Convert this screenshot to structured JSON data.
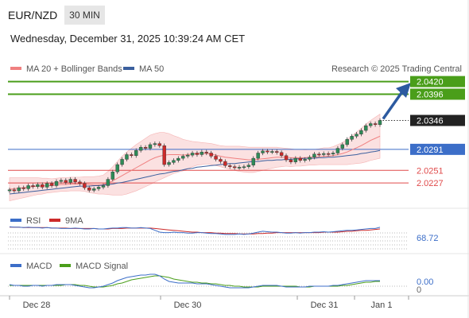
{
  "header": {
    "pair": "EUR/NZD",
    "timeframe": "30 MIN",
    "datetime": "Wednesday, December 31, 2025 10:39:24 AM CET"
  },
  "legend": {
    "ma20": "MA 20 + Bollinger Bands",
    "ma50": "MA 50",
    "credit": "Research © 2025 Trading Central"
  },
  "colors": {
    "candle_up": "#2e8b57",
    "candle_down": "#cc2a2a",
    "ma20": "#f08080",
    "ma50": "#3b5f9e",
    "band_fill": "#fbe1e1",
    "resistance": "#4a9e1a",
    "pivot": "#3c6ec8",
    "support": "#e04a4a",
    "arrow": "#2c5aa0"
  },
  "chart_data": [
    {
      "type": "line",
      "panel": "price",
      "x_ticks": [
        "Dec 28",
        "Dec 30",
        "Dec 31",
        "Jan 1"
      ],
      "levels": [
        {
          "value": 2.042,
          "label": "2.0420",
          "kind": "resistance"
        },
        {
          "value": 2.0396,
          "label": "2.0396",
          "kind": "resistance"
        },
        {
          "value": 2.0346,
          "label": "2.0346",
          "kind": "last"
        },
        {
          "value": 2.0291,
          "label": "2.0291",
          "kind": "pivot"
        },
        {
          "value": 2.0251,
          "label": "2.0251",
          "kind": "support"
        },
        {
          "value": 2.0227,
          "label": "2.0227",
          "kind": "support"
        }
      ],
      "close": [
        2.0214,
        2.0212,
        2.0218,
        2.0216,
        2.0222,
        2.022,
        2.0224,
        2.0219,
        2.0226,
        2.0222,
        2.023,
        2.0232,
        2.0228,
        2.0234,
        2.0229,
        2.0226,
        2.0218,
        2.0213,
        2.0216,
        2.0219,
        2.0222,
        2.0234,
        2.0248,
        2.0262,
        2.0272,
        2.0281,
        2.0279,
        2.0289,
        2.0295,
        2.0293,
        2.03,
        2.0302,
        2.0298,
        2.0262,
        2.0266,
        2.027,
        2.0274,
        2.0278,
        2.028,
        2.0284,
        2.0281,
        2.0286,
        2.0284,
        2.0278,
        2.0272,
        2.0268,
        2.026,
        2.0258,
        2.0256,
        2.0257,
        2.0258,
        2.0261,
        2.0274,
        2.0284,
        2.0288,
        2.0286,
        2.0287,
        2.0285,
        2.0279,
        2.0271,
        2.0267,
        2.0274,
        2.027,
        2.0272,
        2.0276,
        2.0282,
        2.0281,
        2.0283,
        2.0282,
        2.0284,
        2.0293,
        2.03,
        2.031,
        2.0316,
        2.032,
        2.0327,
        2.0336,
        2.034,
        2.0338,
        2.0346
      ],
      "ma20": [
        2.0215,
        2.0216,
        2.0217,
        2.0218,
        2.0219,
        2.022,
        2.0221,
        2.0221,
        2.0222,
        2.0222,
        2.0223,
        2.0224,
        2.0224,
        2.0225,
        2.0225,
        2.0225,
        2.0225,
        2.0224,
        2.0223,
        2.0223,
        2.0224,
        2.0227,
        2.0231,
        2.0236,
        2.0241,
        2.0246,
        2.0251,
        2.0256,
        2.0261,
        2.0266,
        2.0271,
        2.0275,
        2.0278,
        2.028,
        2.0281,
        2.0281,
        2.0281,
        2.028,
        2.0281,
        2.0282,
        2.0283,
        2.0283,
        2.0283,
        2.0282,
        2.028,
        2.0278,
        2.0276,
        2.0275,
        2.0274,
        2.0273,
        2.0272,
        2.0271,
        2.0271,
        2.0272,
        2.0273,
        2.0274,
        2.0275,
        2.0276,
        2.0276,
        2.0276,
        2.0275,
        2.0275,
        2.0275,
        2.0275,
        2.0276,
        2.0276,
        2.0277,
        2.0278,
        2.0278,
        2.0279,
        2.0281,
        2.0283,
        2.0286,
        2.029,
        2.0294,
        2.0298,
        2.0303,
        2.0308,
        2.0312,
        2.0316
      ],
      "ma50": [
        2.0206,
        2.0207,
        2.0208,
        2.0209,
        2.021,
        2.0211,
        2.0212,
        2.0213,
        2.0214,
        2.0215,
        2.0216,
        2.0217,
        2.0218,
        2.0219,
        2.022,
        2.0221,
        2.0221,
        2.0221,
        2.0222,
        2.0222,
        2.0223,
        2.0224,
        2.0225,
        2.0227,
        2.0228,
        2.023,
        2.0232,
        2.0234,
        2.0236,
        2.0238,
        2.024,
        2.0242,
        2.0244,
        2.0245,
        2.0247,
        2.0249,
        2.025,
        2.0252,
        2.0254,
        2.0255,
        2.0257,
        2.0258,
        2.0259,
        2.026,
        2.0261,
        2.0262,
        2.0263,
        2.0264,
        2.0264,
        2.0265,
        2.0266,
        2.0267,
        2.0268,
        2.0268,
        2.0269,
        2.027,
        2.027,
        2.0271,
        2.0271,
        2.0272,
        2.0272,
        2.0273,
        2.0273,
        2.0274,
        2.0274,
        2.0274,
        2.0275,
        2.0275,
        2.0276,
        2.0276,
        2.0277,
        2.0278,
        2.0279,
        2.028,
        2.0281,
        2.0283,
        2.0284,
        2.0286,
        2.0287,
        2.0289
      ],
      "bb_width": [
        0.0022,
        0.0021,
        0.002,
        0.0019,
        0.0018,
        0.0017,
        0.0016,
        0.0015,
        0.0014,
        0.0013,
        0.0013,
        0.0013,
        0.0013,
        0.0013,
        0.0013,
        0.0013,
        0.0014,
        0.0015,
        0.0016,
        0.0017,
        0.0018,
        0.0022,
        0.0027,
        0.0032,
        0.0037,
        0.004,
        0.0042,
        0.0044,
        0.0045,
        0.0046,
        0.0047,
        0.0046,
        0.0045,
        0.0043,
        0.004,
        0.0036,
        0.0033,
        0.003,
        0.0027,
        0.0024,
        0.0022,
        0.0021,
        0.002,
        0.002,
        0.002,
        0.002,
        0.0021,
        0.0022,
        0.0023,
        0.0024,
        0.0024,
        0.0024,
        0.0024,
        0.0023,
        0.0022,
        0.0021,
        0.002,
        0.0019,
        0.0018,
        0.0017,
        0.0017,
        0.0016,
        0.0016,
        0.0015,
        0.0015,
        0.0015,
        0.0015,
        0.0016,
        0.0016,
        0.0017,
        0.0019,
        0.0021,
        0.0024,
        0.0027,
        0.003,
        0.0033,
        0.0036,
        0.0038,
        0.004,
        0.0042
      ]
    },
    {
      "type": "line",
      "panel": "rsi",
      "legend": [
        "RSI",
        "9MA"
      ],
      "last_label": "68.72",
      "ylim": [
        0,
        100
      ],
      "rsi": [
        70,
        69,
        69,
        68,
        69,
        68,
        68,
        67,
        68,
        67,
        67,
        66,
        66,
        66,
        67,
        66,
        65,
        65,
        66,
        65,
        65,
        66,
        67,
        67,
        68,
        68,
        67,
        67,
        68,
        67,
        66,
        62,
        58,
        57,
        57,
        58,
        57,
        57,
        56,
        56,
        57,
        57,
        56,
        55,
        55,
        54,
        53,
        53,
        53,
        54,
        53,
        54,
        56,
        58,
        60,
        59,
        58,
        58,
        57,
        56,
        56,
        57,
        56,
        57,
        57,
        58,
        58,
        59,
        58,
        59,
        60,
        61,
        62,
        62,
        63,
        64,
        65,
        66,
        66,
        68.72
      ],
      "ma9": [
        69,
        69,
        69,
        68,
        68,
        68,
        68,
        68,
        68,
        67,
        67,
        67,
        67,
        66,
        66,
        66,
        66,
        66,
        66,
        65,
        65,
        65,
        66,
        66,
        66,
        67,
        67,
        67,
        67,
        67,
        67,
        66,
        65,
        64,
        63,
        62,
        61,
        60,
        59,
        58,
        58,
        57,
        57,
        57,
        56,
        56,
        55,
        55,
        55,
        54,
        54,
        54,
        54,
        55,
        55,
        56,
        56,
        57,
        57,
        57,
        57,
        57,
        57,
        57,
        57,
        57,
        57,
        58,
        58,
        58,
        58,
        59,
        60,
        60,
        61,
        62,
        62,
        63,
        64,
        65
      ]
    },
    {
      "type": "line",
      "panel": "macd",
      "legend": [
        "MACD",
        "MACD Signal"
      ],
      "last_label": "0.00",
      "axis_label": "0",
      "ylim": [
        -0.0012,
        0.0018
      ],
      "macd": [
        0.0002,
        0.0001,
        0.0001,
        0.0,
        0.0,
        0.0001,
        0.0001,
        0.0,
        0.0001,
        0.0001,
        0.0002,
        0.0002,
        0.0002,
        0.0002,
        0.0001,
        0.0,
        -0.0001,
        -0.0002,
        -0.0002,
        -0.0001,
        0.0,
        0.0002,
        0.0004,
        0.0007,
        0.0009,
        0.0011,
        0.0012,
        0.0013,
        0.0014,
        0.0014,
        0.0015,
        0.0015,
        0.0013,
        0.0009,
        0.0006,
        0.0005,
        0.0004,
        0.0004,
        0.0004,
        0.0004,
        0.0003,
        0.0003,
        0.0003,
        0.0002,
        0.0001,
        0.0,
        -0.0001,
        -0.0002,
        -0.0002,
        -0.0002,
        -0.0002,
        -0.0002,
        -0.0001,
        0.0,
        0.0001,
        0.0001,
        0.0001,
        0.0001,
        0.0,
        -0.0001,
        -0.0001,
        -0.0001,
        -0.0001,
        -0.0001,
        0.0,
        0.0,
        0.0,
        0.0,
        0.0,
        0.0001,
        0.0001,
        0.0002,
        0.0003,
        0.0004,
        0.0005,
        0.0006,
        0.0007,
        0.0007,
        0.0007,
        0.0007
      ],
      "signal": [
        0.0001,
        0.0001,
        0.0001,
        0.0001,
        0.0001,
        0.0001,
        0.0001,
        0.0001,
        0.0001,
        0.0001,
        0.0001,
        0.0001,
        0.0002,
        0.0002,
        0.0002,
        0.0001,
        0.0001,
        0.0,
        -0.0001,
        -0.0001,
        -0.0001,
        0.0,
        0.0001,
        0.0003,
        0.0004,
        0.0006,
        0.0008,
        0.0009,
        0.001,
        0.0011,
        0.0012,
        0.0013,
        0.0013,
        0.0012,
        0.0011,
        0.0009,
        0.0008,
        0.0007,
        0.0006,
        0.0005,
        0.0005,
        0.0004,
        0.0004,
        0.0003,
        0.0003,
        0.0002,
        0.0001,
        0.0001,
        0.0,
        0.0,
        -0.0001,
        -0.0001,
        -0.0001,
        -0.0001,
        0.0,
        0.0,
        0.0,
        0.0,
        0.0,
        0.0,
        0.0,
        0.0,
        -0.0001,
        -0.0001,
        -0.0001,
        0.0,
        0.0,
        0.0,
        0.0,
        0.0,
        0.0,
        0.0001,
        0.0001,
        0.0002,
        0.0003,
        0.0004,
        0.0005,
        0.0005,
        0.0006,
        0.0006
      ]
    }
  ]
}
